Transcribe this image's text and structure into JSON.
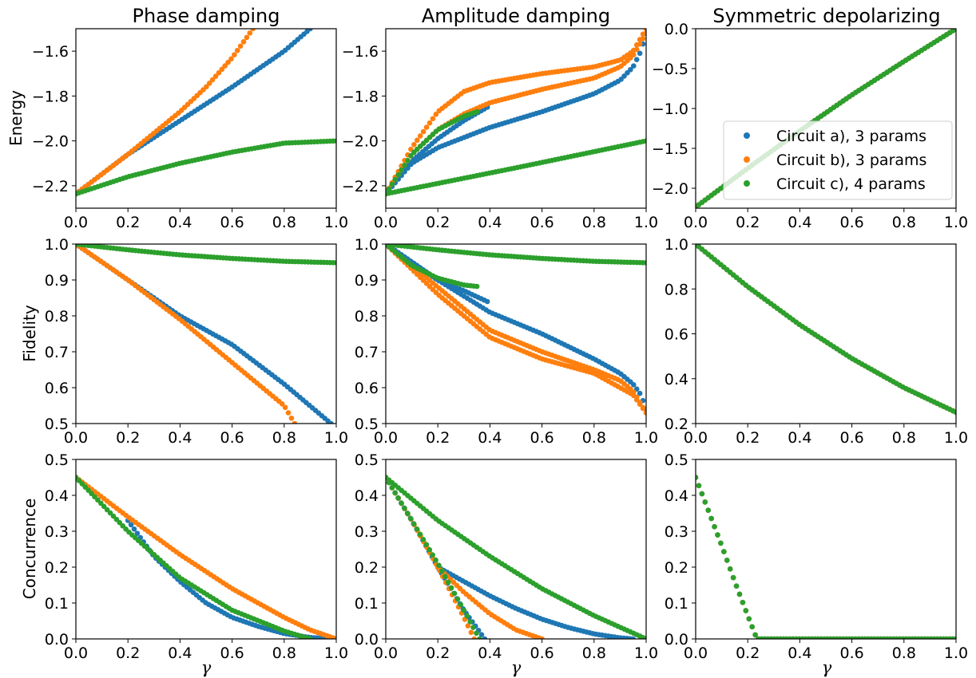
{
  "figure": {
    "column_titles": [
      "Phase damping",
      "Amplitude damping",
      "Symmetric depolarizing"
    ],
    "row_labels": [
      "Energy",
      "Fidelity",
      "Concurrence"
    ],
    "xlabel": "γ",
    "legend": {
      "placement": "center-right (Symmetric depolarizing, Energy panel)",
      "entries": [
        "Circuit a), 3 params",
        "Circuit b), 3 params",
        "Circuit c), 4 params"
      ]
    },
    "colors": {
      "Circuit a), 3 params": "#1f77b4",
      "Circuit b), 3 params": "#ff7f0e",
      "Circuit c), 4 params": "#2ca02c"
    }
  },
  "chart_data": [
    {
      "type": "scatter",
      "row": 0,
      "col": 0,
      "title": "Phase damping",
      "ylabel": "Energy",
      "xlabel": "",
      "xlim": [
        0.0,
        1.0
      ],
      "ylim": [
        -2.3,
        -1.5
      ],
      "xticks": [
        "0.0",
        "0.2",
        "0.4",
        "0.6",
        "0.8",
        "1.0"
      ],
      "yticks": [
        "−2.2",
        "−2.0",
        "−1.8",
        "−1.6"
      ],
      "series": [
        {
          "name": "Circuit a), 3 params",
          "x": [
            0,
            0.2,
            0.4,
            0.6,
            0.8,
            0.9
          ],
          "y": [
            -2.236,
            -2.06,
            -1.91,
            -1.76,
            -1.6,
            -1.5
          ]
        },
        {
          "name": "Circuit b), 3 params",
          "x": [
            0,
            0.2,
            0.4,
            0.5,
            0.6,
            0.68
          ],
          "y": [
            -2.236,
            -2.06,
            -1.87,
            -1.76,
            -1.63,
            -1.5
          ]
        },
        {
          "name": "Circuit c), 4 params",
          "x": [
            0,
            0.2,
            0.4,
            0.6,
            0.8,
            1.0
          ],
          "y": [
            -2.236,
            -2.16,
            -2.1,
            -2.05,
            -2.01,
            -2.0
          ]
        }
      ]
    },
    {
      "type": "scatter",
      "row": 0,
      "col": 1,
      "title": "Amplitude damping",
      "ylabel": "",
      "xlabel": "",
      "xlim": [
        0.0,
        1.0
      ],
      "ylim": [
        -2.3,
        -1.5
      ],
      "xticks": [
        "0.0",
        "0.2",
        "0.4",
        "0.6",
        "0.8",
        "1.0"
      ],
      "yticks": [
        "−2.2",
        "−2.0",
        "−1.8",
        "−1.6"
      ],
      "series": [
        {
          "name": "Circuit a), 3 params",
          "x": [
            0,
            0.05,
            0.1,
            0.2,
            0.3,
            0.39
          ],
          "y": [
            -2.236,
            -2.15,
            -2.09,
            -1.99,
            -1.91,
            -1.85
          ]
        },
        {
          "name": "Circuit a), 3 params",
          "x": [
            0,
            0.1,
            0.2,
            0.4,
            0.6,
            0.8,
            0.9,
            0.95,
            0.98,
            1.0
          ],
          "y": [
            -2.236,
            -2.1,
            -2.03,
            -1.94,
            -1.87,
            -1.79,
            -1.73,
            -1.67,
            -1.6,
            -1.52
          ]
        },
        {
          "name": "Circuit b), 3 params",
          "x": [
            0,
            0.1,
            0.2,
            0.3,
            0.4,
            0.6,
            0.8,
            0.9,
            0.95,
            1.0
          ],
          "y": [
            -2.236,
            -2.03,
            -1.87,
            -1.78,
            -1.74,
            -1.7,
            -1.67,
            -1.64,
            -1.6,
            -1.5
          ]
        },
        {
          "name": "Circuit b), 3 params",
          "x": [
            0,
            0.1,
            0.2,
            0.3,
            0.4,
            0.6,
            0.8,
            0.9,
            0.95,
            1.0
          ],
          "y": [
            -2.236,
            -2.06,
            -1.95,
            -1.88,
            -1.83,
            -1.77,
            -1.72,
            -1.67,
            -1.62,
            -1.52
          ]
        },
        {
          "name": "Circuit c), 4 params",
          "x": [
            0,
            0.1,
            0.2,
            0.3,
            0.35
          ],
          "y": [
            -2.236,
            -2.06,
            -1.95,
            -1.89,
            -1.87
          ]
        },
        {
          "name": "Circuit c), 4 params",
          "x": [
            0,
            0.5,
            1.0
          ],
          "y": [
            -2.236,
            -2.12,
            -2.0
          ]
        }
      ]
    },
    {
      "type": "scatter",
      "row": 0,
      "col": 2,
      "title": "Symmetric depolarizing",
      "ylabel": "",
      "xlabel": "",
      "xlim": [
        0.0,
        1.0
      ],
      "ylim": [
        -2.25,
        0.0
      ],
      "xticks": [
        "0.0",
        "0.2",
        "0.4",
        "0.6",
        "0.8",
        "1.0"
      ],
      "yticks": [
        "−2.0",
        "−1.5",
        "−1.0",
        "−0.5",
        "0.0"
      ],
      "series": [
        {
          "name": "Circuit a), 3 params",
          "x": [
            0,
            0.2,
            0.4,
            0.6,
            0.8,
            1.0
          ],
          "y": [
            -2.236,
            -1.75,
            -1.28,
            -0.83,
            -0.41,
            0.0
          ]
        },
        {
          "name": "Circuit b), 3 params",
          "x": [
            0,
            0.2,
            0.4,
            0.6,
            0.8,
            1.0
          ],
          "y": [
            -2.236,
            -1.75,
            -1.28,
            -0.83,
            -0.41,
            0.0
          ]
        },
        {
          "name": "Circuit c), 4 params",
          "x": [
            0,
            0.2,
            0.4,
            0.6,
            0.8,
            1.0
          ],
          "y": [
            -2.236,
            -1.75,
            -1.28,
            -0.83,
            -0.41,
            0.0
          ]
        }
      ]
    },
    {
      "type": "scatter",
      "row": 1,
      "col": 0,
      "title": "",
      "ylabel": "Fidelity",
      "xlabel": "",
      "xlim": [
        0.0,
        1.0
      ],
      "ylim": [
        0.5,
        1.0
      ],
      "xticks": [
        "0.0",
        "0.2",
        "0.4",
        "0.6",
        "0.8",
        "1.0"
      ],
      "yticks": [
        "0.5",
        "0.6",
        "0.7",
        "0.8",
        "0.9",
        "1.0"
      ],
      "series": [
        {
          "name": "Circuit a), 3 params",
          "x": [
            0,
            0.2,
            0.4,
            0.6,
            0.8,
            0.98
          ],
          "y": [
            1.0,
            0.9,
            0.8,
            0.72,
            0.61,
            0.5
          ]
        },
        {
          "name": "Circuit b), 3 params",
          "x": [
            0,
            0.2,
            0.4,
            0.6,
            0.8,
            0.84
          ],
          "y": [
            1.0,
            0.9,
            0.79,
            0.67,
            0.55,
            0.5
          ]
        },
        {
          "name": "Circuit c), 4 params",
          "x": [
            0,
            0.2,
            0.4,
            0.6,
            0.8,
            1.0
          ],
          "y": [
            1.0,
            0.984,
            0.97,
            0.96,
            0.952,
            0.948
          ]
        }
      ]
    },
    {
      "type": "scatter",
      "row": 1,
      "col": 1,
      "title": "",
      "ylabel": "",
      "xlabel": "",
      "xlim": [
        0.0,
        1.0
      ],
      "ylim": [
        0.5,
        1.0
      ],
      "xticks": [
        "0.0",
        "0.2",
        "0.4",
        "0.6",
        "0.8",
        "1.0"
      ],
      "yticks": [
        "0.5",
        "0.6",
        "0.7",
        "0.8",
        "0.9",
        "1.0"
      ],
      "series": [
        {
          "name": "Circuit a), 3 params",
          "x": [
            0,
            0.1,
            0.2,
            0.3,
            0.39
          ],
          "y": [
            1.0,
            0.95,
            0.9,
            0.87,
            0.84
          ]
        },
        {
          "name": "Circuit a), 3 params",
          "x": [
            0,
            0.2,
            0.4,
            0.6,
            0.8,
            0.9,
            0.95,
            0.98,
            1.0
          ],
          "y": [
            1.0,
            0.9,
            0.81,
            0.75,
            0.68,
            0.64,
            0.61,
            0.58,
            0.54
          ]
        },
        {
          "name": "Circuit b), 3 params",
          "x": [
            0,
            0.2,
            0.4,
            0.6,
            0.8,
            0.9,
            0.95,
            1.0
          ],
          "y": [
            1.0,
            0.88,
            0.76,
            0.7,
            0.65,
            0.62,
            0.59,
            0.53
          ]
        },
        {
          "name": "Circuit b), 3 params",
          "x": [
            0,
            0.2,
            0.4,
            0.6,
            0.8,
            0.9,
            0.95,
            1.0
          ],
          "y": [
            1.0,
            0.86,
            0.74,
            0.68,
            0.64,
            0.6,
            0.58,
            0.53
          ]
        },
        {
          "name": "Circuit c), 4 params",
          "x": [
            0,
            0.1,
            0.2,
            0.3,
            0.35
          ],
          "y": [
            1.0,
            0.94,
            0.905,
            0.886,
            0.882
          ]
        },
        {
          "name": "Circuit c), 4 params",
          "x": [
            0,
            0.2,
            0.4,
            0.6,
            0.8,
            1.0
          ],
          "y": [
            1.0,
            0.984,
            0.97,
            0.96,
            0.952,
            0.948
          ]
        }
      ]
    },
    {
      "type": "scatter",
      "row": 1,
      "col": 2,
      "title": "",
      "ylabel": "",
      "xlabel": "",
      "xlim": [
        0.0,
        1.0
      ],
      "ylim": [
        0.2,
        1.0
      ],
      "xticks": [
        "0.0",
        "0.2",
        "0.4",
        "0.6",
        "0.8",
        "1.0"
      ],
      "yticks": [
        "0.2",
        "0.4",
        "0.6",
        "0.8",
        "1.0"
      ],
      "series": [
        {
          "name": "Circuit a), 3 params",
          "x": [
            0,
            0.2,
            0.4,
            0.6,
            0.8,
            1.0
          ],
          "y": [
            1.0,
            0.81,
            0.64,
            0.49,
            0.36,
            0.25
          ]
        },
        {
          "name": "Circuit b), 3 params",
          "x": [
            0,
            0.2,
            0.4,
            0.6,
            0.8,
            1.0
          ],
          "y": [
            1.0,
            0.81,
            0.64,
            0.49,
            0.36,
            0.25
          ]
        },
        {
          "name": "Circuit c), 4 params",
          "x": [
            0,
            0.2,
            0.4,
            0.6,
            0.8,
            1.0
          ],
          "y": [
            1.0,
            0.81,
            0.64,
            0.49,
            0.36,
            0.25
          ]
        }
      ]
    },
    {
      "type": "scatter",
      "row": 2,
      "col": 0,
      "title": "",
      "ylabel": "Concurrence",
      "xlabel": "γ",
      "xlim": [
        0.0,
        1.0
      ],
      "ylim": [
        0.0,
        0.5
      ],
      "xticks": [
        "0.0",
        "0.2",
        "0.4",
        "0.6",
        "0.8",
        "1.0"
      ],
      "yticks": [
        "0.0",
        "0.1",
        "0.2",
        "0.3",
        "0.4",
        "0.5"
      ],
      "series": [
        {
          "name": "Circuit a), 3 params",
          "x": [
            0.2,
            0.3,
            0.4,
            0.5,
            0.6,
            0.7,
            0.8,
            0.9,
            1.0
          ],
          "y": [
            0.33,
            0.23,
            0.16,
            0.1,
            0.06,
            0.035,
            0.015,
            0.004,
            0.0
          ]
        },
        {
          "name": "Circuit b), 3 params",
          "x": [
            0,
            0.2,
            0.4,
            0.6,
            0.8,
            0.9,
            1.0
          ],
          "y": [
            0.45,
            0.34,
            0.235,
            0.14,
            0.06,
            0.025,
            0.0
          ]
        },
        {
          "name": "Circuit c), 4 params",
          "x": [
            0,
            0.2,
            0.4,
            0.6,
            0.8,
            0.9
          ],
          "y": [
            0.45,
            0.3,
            0.17,
            0.08,
            0.022,
            0.0
          ]
        }
      ]
    },
    {
      "type": "scatter",
      "row": 2,
      "col": 1,
      "title": "",
      "ylabel": "",
      "xlabel": "γ",
      "xlim": [
        0.0,
        1.0
      ],
      "ylim": [
        0.0,
        0.5
      ],
      "xticks": [
        "0.0",
        "0.2",
        "0.4",
        "0.6",
        "0.8",
        "1.0"
      ],
      "yticks": [
        "0.0",
        "0.1",
        "0.2",
        "0.3",
        "0.4",
        "0.5"
      ],
      "series": [
        {
          "name": "Circuit a), 3 params",
          "x": [
            0,
            0.1,
            0.2,
            0.3,
            0.38
          ],
          "y": [
            0.45,
            0.33,
            0.2,
            0.08,
            0.0
          ]
        },
        {
          "name": "Circuit a), 3 params",
          "x": [
            0.2,
            0.3,
            0.4,
            0.5,
            0.6,
            0.7,
            0.8,
            0.9,
            0.95
          ],
          "y": [
            0.2,
            0.16,
            0.12,
            0.085,
            0.055,
            0.032,
            0.014,
            0.003,
            0.0
          ]
        },
        {
          "name": "Circuit b), 3 params",
          "x": [
            0,
            0.1,
            0.2,
            0.3,
            0.34
          ],
          "y": [
            0.45,
            0.33,
            0.2,
            0.06,
            0.0
          ]
        },
        {
          "name": "Circuit b), 3 params",
          "x": [
            0.2,
            0.3,
            0.4,
            0.5,
            0.6
          ],
          "y": [
            0.2,
            0.13,
            0.07,
            0.025,
            0.0
          ]
        },
        {
          "name": "Circuit c), 4 params",
          "x": [
            0,
            0.1,
            0.2,
            0.3,
            0.36
          ],
          "y": [
            0.45,
            0.33,
            0.21,
            0.08,
            0.0
          ]
        },
        {
          "name": "Circuit c), 4 params",
          "x": [
            0,
            0.2,
            0.4,
            0.6,
            0.8,
            1.0
          ],
          "y": [
            0.45,
            0.33,
            0.23,
            0.14,
            0.065,
            0.0
          ]
        }
      ]
    },
    {
      "type": "scatter",
      "row": 2,
      "col": 2,
      "title": "",
      "ylabel": "",
      "xlabel": "γ",
      "xlim": [
        0.0,
        1.0
      ],
      "ylim": [
        0.0,
        0.5
      ],
      "xticks": [
        "0.0",
        "0.2",
        "0.4",
        "0.6",
        "0.8",
        "1.0"
      ],
      "yticks": [
        "0.0",
        "0.1",
        "0.2",
        "0.3",
        "0.4",
        "0.5"
      ],
      "series": [
        {
          "name": "Circuit a), 3 params",
          "x": [
            0,
            0.05,
            0.1,
            0.15,
            0.2,
            0.235,
            0.4,
            0.6,
            0.8,
            1.0
          ],
          "y": [
            0.45,
            0.355,
            0.26,
            0.16,
            0.065,
            0.0,
            0.0,
            0.0,
            0.0,
            0.0
          ]
        },
        {
          "name": "Circuit b), 3 params",
          "x": [
            0,
            0.05,
            0.1,
            0.15,
            0.2,
            0.235,
            0.4,
            0.6,
            0.8,
            1.0
          ],
          "y": [
            0.45,
            0.355,
            0.26,
            0.16,
            0.065,
            0.0,
            0.0,
            0.0,
            0.0,
            0.0
          ]
        },
        {
          "name": "Circuit c), 4 params",
          "x": [
            0,
            0.05,
            0.1,
            0.15,
            0.2,
            0.235,
            0.4,
            0.6,
            0.8,
            1.0
          ],
          "y": [
            0.45,
            0.355,
            0.26,
            0.16,
            0.065,
            0.0,
            0.0,
            0.0,
            0.0,
            0.0
          ]
        }
      ]
    }
  ]
}
